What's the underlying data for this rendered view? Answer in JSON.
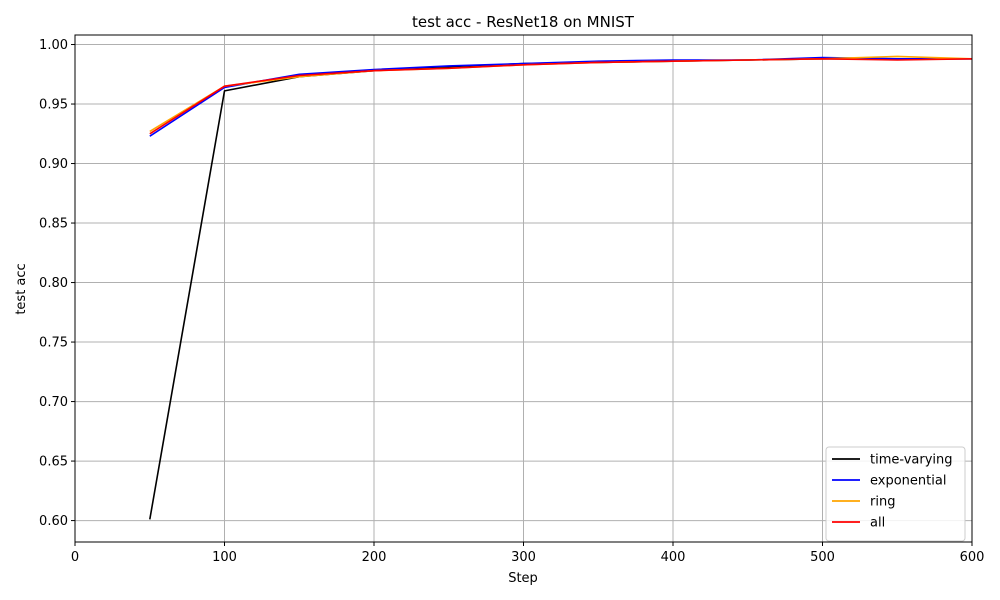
{
  "chart_data": {
    "type": "line",
    "title": "test acc - ResNet18 on MNIST",
    "xlabel": "Step",
    "ylabel": "test acc",
    "xlim": [
      0,
      600
    ],
    "ylim": [
      0.582,
      1.008
    ],
    "xticks": [
      0,
      100,
      200,
      300,
      400,
      500,
      600
    ],
    "yticks": [
      0.6,
      0.65,
      0.7,
      0.75,
      0.8,
      0.85,
      0.9,
      0.95,
      1.0
    ],
    "grid": true,
    "legend_position": "bottom-right",
    "x": [
      50,
      100,
      150,
      200,
      250,
      300,
      350,
      400,
      450,
      500,
      550,
      600
    ],
    "series": [
      {
        "name": "time-varying",
        "color": "#000000",
        "values": [
          0.601,
          0.961,
          0.973,
          0.978,
          0.981,
          0.984,
          0.985,
          0.986,
          0.987,
          0.988,
          0.988,
          0.988
        ]
      },
      {
        "name": "exponential",
        "color": "#0000ff",
        "values": [
          0.923,
          0.964,
          0.975,
          0.979,
          0.982,
          0.984,
          0.986,
          0.987,
          0.987,
          0.989,
          0.988,
          0.988
        ]
      },
      {
        "name": "ring",
        "color": "#ffa500",
        "values": [
          0.927,
          0.965,
          0.973,
          0.978,
          0.98,
          0.983,
          0.985,
          0.986,
          0.987,
          0.988,
          0.99,
          0.988
        ]
      },
      {
        "name": "all",
        "color": "#ff0000",
        "values": [
          0.925,
          0.965,
          0.974,
          0.978,
          0.98,
          0.983,
          0.985,
          0.986,
          0.987,
          0.988,
          0.987,
          0.988
        ]
      }
    ]
  }
}
